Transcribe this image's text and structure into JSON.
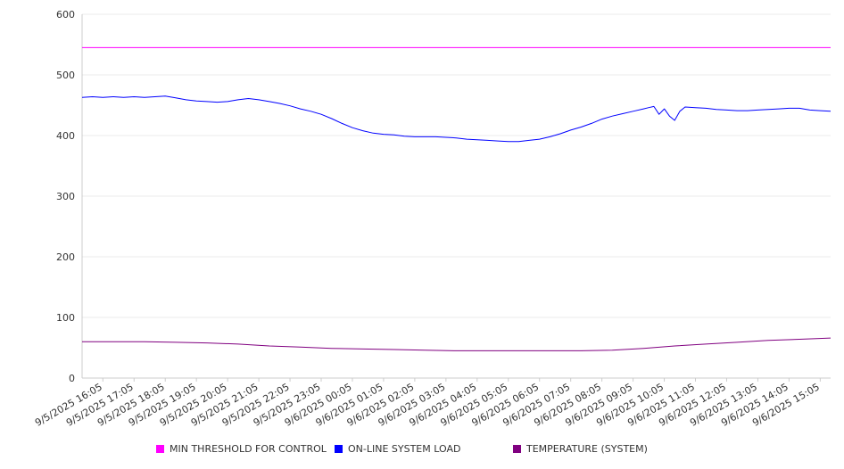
{
  "chart_data": {
    "type": "line",
    "title": "",
    "xlabel": "",
    "ylabel": "",
    "ylim": [
      0,
      600
    ],
    "yticks": [
      0,
      100,
      200,
      300,
      400,
      500,
      600
    ],
    "grid": true,
    "legend_position": "bottom",
    "x_tick_labels": [
      "9/5/2025 16:05",
      "9/5/2025 17:05",
      "9/5/2025 18:05",
      "9/5/2025 19:05",
      "9/5/2025 20:05",
      "9/5/2025 21:05",
      "9/5/2025 22:05",
      "9/5/2025 23:05",
      "9/6/2025 00:05",
      "9/6/2025 01:05",
      "9/6/2025 02:05",
      "9/6/2025 03:05",
      "9/6/2025 04:05",
      "9/6/2025 05:05",
      "9/6/2025 06:05",
      "9/6/2025 07:05",
      "9/6/2025 08:05",
      "9/6/2025 09:05",
      "9/6/2025 10:05",
      "9/6/2025 11:05",
      "9/6/2025 12:05",
      "9/6/2025 13:05",
      "9/6/2025 14:05",
      "9/6/2025 15:05"
    ],
    "series": [
      {
        "name": "MIN THRESHOLD FOR CONTROL",
        "color": "#ff00ff",
        "x": [
          "9/5/2025 15:25",
          "9/6/2025 15:25"
        ],
        "values": [
          545,
          545
        ]
      },
      {
        "name": "ON-LINE SYSTEM LOAD",
        "color": "#0000ff",
        "x": [
          "9/5/2025 15:25",
          "9/5/2025 15:45",
          "9/5/2025 16:05",
          "9/5/2025 16:25",
          "9/5/2025 16:45",
          "9/5/2025 17:05",
          "9/5/2025 17:25",
          "9/5/2025 17:45",
          "9/5/2025 18:05",
          "9/5/2025 18:25",
          "9/5/2025 18:45",
          "9/5/2025 19:05",
          "9/5/2025 19:25",
          "9/5/2025 19:45",
          "9/5/2025 20:05",
          "9/5/2025 20:25",
          "9/5/2025 20:45",
          "9/5/2025 21:05",
          "9/5/2025 21:25",
          "9/5/2025 21:45",
          "9/5/2025 22:05",
          "9/5/2025 22:25",
          "9/5/2025 22:45",
          "9/5/2025 23:05",
          "9/5/2025 23:25",
          "9/5/2025 23:45",
          "9/6/2025 00:05",
          "9/6/2025 00:25",
          "9/6/2025 00:45",
          "9/6/2025 01:05",
          "9/6/2025 01:25",
          "9/6/2025 01:45",
          "9/6/2025 02:05",
          "9/6/2025 02:25",
          "9/6/2025 02:45",
          "9/6/2025 03:05",
          "9/6/2025 03:25",
          "9/6/2025 03:45",
          "9/6/2025 04:05",
          "9/6/2025 04:25",
          "9/6/2025 04:45",
          "9/6/2025 05:05",
          "9/6/2025 05:25",
          "9/6/2025 05:45",
          "9/6/2025 06:05",
          "9/6/2025 06:25",
          "9/6/2025 06:45",
          "9/6/2025 07:05",
          "9/6/2025 07:25",
          "9/6/2025 07:45",
          "9/6/2025 08:05",
          "9/6/2025 08:25",
          "9/6/2025 08:45",
          "9/6/2025 09:05",
          "9/6/2025 09:25",
          "9/6/2025 09:35",
          "9/6/2025 09:45",
          "9/6/2025 09:55",
          "9/6/2025 10:05",
          "9/6/2025 10:15",
          "9/6/2025 10:25",
          "9/6/2025 10:35",
          "9/6/2025 10:45",
          "9/6/2025 11:05",
          "9/6/2025 11:25",
          "9/6/2025 11:45",
          "9/6/2025 12:05",
          "9/6/2025 12:25",
          "9/6/2025 12:45",
          "9/6/2025 13:05",
          "9/6/2025 13:25",
          "9/6/2025 13:45",
          "9/6/2025 14:05",
          "9/6/2025 14:25",
          "9/6/2025 14:45",
          "9/6/2025 15:05",
          "9/6/2025 15:25"
        ],
        "values": [
          463,
          464,
          463,
          464,
          463,
          464,
          463,
          464,
          465,
          462,
          459,
          457,
          456,
          455,
          456,
          459,
          461,
          459,
          456,
          453,
          449,
          444,
          440,
          435,
          428,
          420,
          413,
          408,
          404,
          402,
          401,
          399,
          398,
          398,
          398,
          397,
          396,
          394,
          393,
          392,
          391,
          390,
          390,
          392,
          394,
          398,
          403,
          409,
          414,
          420,
          427,
          432,
          436,
          440,
          444,
          446,
          448,
          435,
          444,
          432,
          425,
          440,
          447,
          446,
          445,
          443,
          442,
          441,
          441,
          442,
          443,
          444,
          445,
          445,
          442,
          441,
          440
        ]
      },
      {
        "name": "TEMPERATURE (SYSTEM)",
        "color": "#800080",
        "x": [
          "9/5/2025 15:25",
          "9/5/2025 16:25",
          "9/5/2025 17:25",
          "9/5/2025 18:25",
          "9/5/2025 19:25",
          "9/5/2025 20:25",
          "9/5/2025 21:25",
          "9/5/2025 22:25",
          "9/5/2025 23:25",
          "9/6/2025 00:25",
          "9/6/2025 01:25",
          "9/6/2025 02:25",
          "9/6/2025 03:25",
          "9/6/2025 04:25",
          "9/6/2025 05:25",
          "9/6/2025 06:25",
          "9/6/2025 07:25",
          "9/6/2025 08:25",
          "9/6/2025 09:25",
          "9/6/2025 10:25",
          "9/6/2025 11:25",
          "9/6/2025 12:25",
          "9/6/2025 13:25",
          "9/6/2025 14:25",
          "9/6/2025 15:25"
        ],
        "values": [
          60,
          60,
          60,
          59,
          58,
          56,
          53,
          51,
          49,
          48,
          47,
          46,
          45,
          45,
          45,
          45,
          45,
          46,
          49,
          53,
          56,
          59,
          62,
          64,
          66
        ]
      }
    ]
  }
}
